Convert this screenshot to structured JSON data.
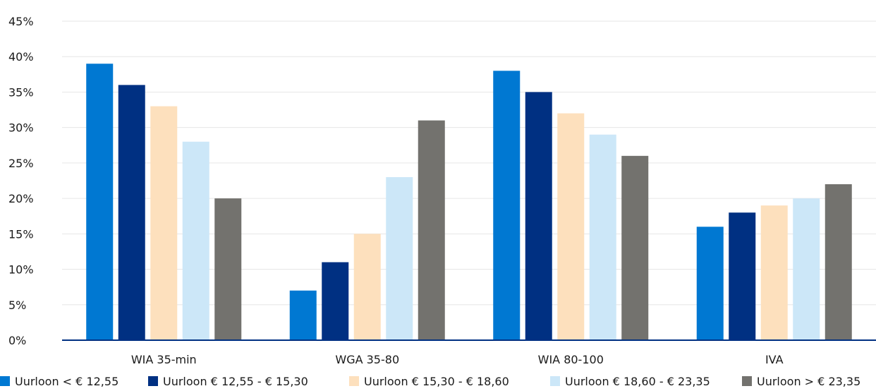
{
  "chart_data": {
    "type": "bar",
    "title": "",
    "xlabel": "",
    "ylabel": "",
    "ylim": [
      0,
      45
    ],
    "yticks": [
      0,
      5,
      10,
      15,
      20,
      25,
      30,
      35,
      40,
      45
    ],
    "ytick_labels": [
      "0%",
      "5%",
      "10%",
      "15%",
      "20%",
      "25%",
      "30%",
      "35%",
      "40%",
      "45%"
    ],
    "grid": true,
    "legend_position": "bottom",
    "categories": [
      "WIA 35-min",
      "WGA 35-80",
      "WIA 80-100",
      "IVA"
    ],
    "series": [
      {
        "name": "Uurloon < € 12,55",
        "color": "#0078d2",
        "values": [
          39,
          7,
          38,
          16
        ]
      },
      {
        "name": "Uurloon € 12,55 - € 15,30",
        "color": "#003082",
        "values": [
          36,
          11,
          35,
          18
        ]
      },
      {
        "name": "Uurloon € 15,30 - € 18,60",
        "color": "#fde0bd",
        "values": [
          33,
          15,
          32,
          19
        ]
      },
      {
        "name": "Uurloon € 18,60 - € 23,35",
        "color": "#cce7f8",
        "values": [
          28,
          23,
          29,
          20
        ]
      },
      {
        "name": "Uurloon > € 23,35",
        "color": "#73726e",
        "values": [
          20,
          31,
          26,
          22
        ]
      }
    ]
  }
}
